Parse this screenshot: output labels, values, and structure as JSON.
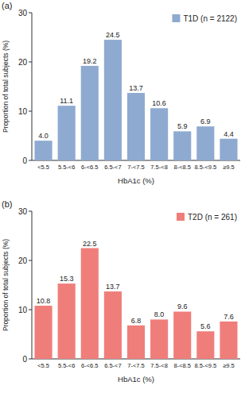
{
  "chart_data": [
    {
      "type": "bar",
      "title": "(a)",
      "categories": [
        "<5.5",
        "5.5-<6",
        "6-<6.5",
        "6.5-<7",
        "7-<7.5",
        "7.5-<8",
        "8-<8.5",
        "8.5-<9.5",
        "≥9.5"
      ],
      "series": [
        {
          "name": "T1D (n = 2122)",
          "color": "#8eaad0",
          "values": [
            4.0,
            11.1,
            19.2,
            24.5,
            13.7,
            10.6,
            5.9,
            6.9,
            4.4
          ],
          "value_labels": [
            "4.0",
            "11.1",
            "19.2",
            "24.5",
            "13.7",
            "10.6",
            "5.9",
            "6.9",
            "4.4"
          ]
        }
      ],
      "x_label": "HbA1c (%)",
      "y_label": "Proportion of total subjects (%)",
      "ylim": [
        0,
        30
      ],
      "yticks": [
        0,
        10,
        20,
        30
      ],
      "grid": false,
      "legend": "top-right",
      "data_labels": true
    },
    {
      "type": "bar",
      "title": "(b)",
      "categories": [
        "<5.5",
        "5.5-<6",
        "6-<6.5",
        "6.5-<7",
        "7-<7.5",
        "7.5-<8",
        "8-<8.5",
        "8.5-<9.5",
        "≥9.5"
      ],
      "series": [
        {
          "name": "T2D (n = 261)",
          "color": "#ef7e7b",
          "values": [
            10.8,
            15.3,
            22.5,
            13.7,
            6.8,
            8.0,
            9.6,
            5.6,
            7.6
          ],
          "value_labels": [
            "10.8",
            "15.3",
            "22.5",
            "13.7",
            "6.8",
            "8.0",
            "9.6",
            "5.6",
            "7.6"
          ]
        }
      ],
      "x_label": "HbA1c (%)",
      "y_label": "Proportion of total subjects (%)",
      "ylim": [
        0,
        30
      ],
      "yticks": [
        0,
        10,
        20,
        30
      ],
      "grid": false,
      "legend": "top-right",
      "data_labels": true
    }
  ]
}
